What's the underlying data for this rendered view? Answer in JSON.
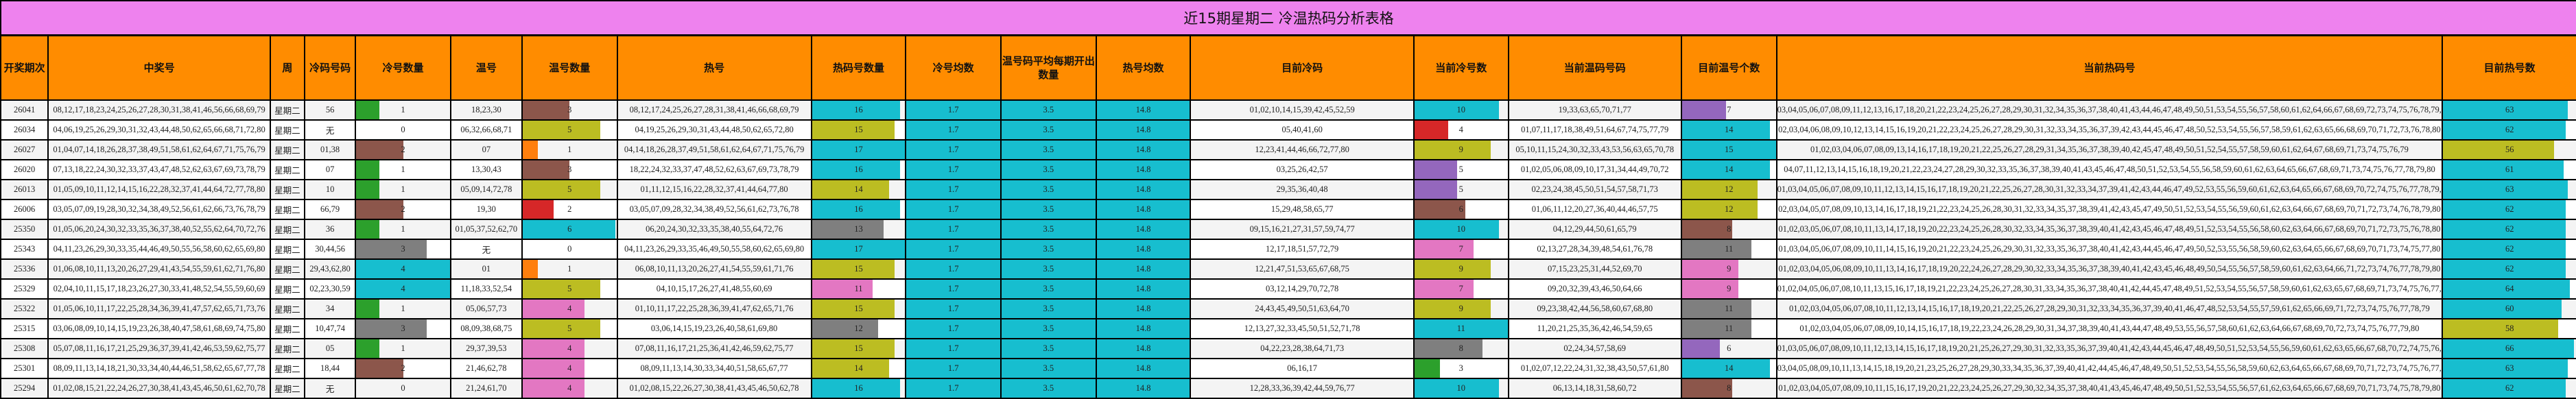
{
  "title": "近15期星期二 冷温热码分析表格",
  "colors": {
    "title_bg": "#ee82ee",
    "header_bg": "#ff8c00",
    "cyan": "#17becf",
    "olive": "#bcbd22",
    "brown": "#8c564b",
    "green": "#2ca02c",
    "orange": "#ff7f0e",
    "red": "#d62728",
    "gray": "#7f7f7f",
    "pink": "#e377c2",
    "purple": "#9467bd"
  },
  "headers": [
    "开奖期次",
    "中奖号",
    "周",
    "冷码号码",
    "冷号数量",
    "温号",
    "温号数量",
    "热号",
    "热码号数量",
    "冷号均数",
    "温号码平均每期开出数量",
    "热号均数",
    "目前冷码",
    "当前冷号数",
    "当前温码号码",
    "目前温号个数",
    "当前热码号",
    "目前热号数"
  ],
  "rows": [
    {
      "period": "26041",
      "numbers": "08,12,17,18,23,24,25,26,27,28,30,31,38,41,46,56,66,68,69,79",
      "week": "星期二",
      "cold": "56",
      "cold_count": "1",
      "warm": "18,23,30",
      "warm_count": "3",
      "hot": "08,12,17,24,25,26,27,28,31,38,41,46,66,68,69,79",
      "hot_count": "16",
      "cold_avg": "1.7",
      "warm_avg": "3.5",
      "hot_avg": "14.8",
      "cur_cold": "01,02,10,14,15,39,42,45,52,59",
      "cur_cold_count": "10",
      "cur_warm": "19,33,63,65,70,71,77",
      "cur_warm_count": "7",
      "cur_hot": "03,04,05,06,07,08,09,11,12,13,16,17,18,20,21,22,23,24,25,26,27,28,29,30,31,32,34,35,36,37,38,40,41,43,44,46,47,48,49,50,51,53,54,55,56,57,58,60,61,62,64,66,67,68,69,72,73,74,75,76,78,79,80",
      "cur_hot_count": "63"
    },
    {
      "period": "26034",
      "numbers": "04,06,19,25,26,29,30,31,32,43,44,48,50,62,65,66,68,71,72,80",
      "week": "星期二",
      "cold": "无",
      "cold_count": "0",
      "warm": "06,32,66,68,71",
      "warm_count": "5",
      "hot": "04,19,25,26,29,30,31,43,44,48,50,62,65,72,80",
      "hot_count": "15",
      "cold_avg": "1.7",
      "warm_avg": "3.5",
      "hot_avg": "14.8",
      "cur_cold": "05,40,41,60",
      "cur_cold_count": "4",
      "cur_warm": "01,07,11,17,18,38,49,51,64,67,74,75,77,79",
      "cur_warm_count": "14",
      "cur_hot": "02,03,04,06,08,09,10,12,13,14,15,16,19,20,21,22,23,24,25,26,27,28,29,30,31,32,33,34,35,36,37,39,42,43,44,45,46,47,48,50,52,53,54,55,56,57,58,59,61,62,63,65,66,68,69,70,71,72,73,76,78,80",
      "cur_hot_count": "62"
    },
    {
      "period": "26027",
      "numbers": "01,04,07,14,18,26,28,37,38,49,51,58,61,62,64,67,71,75,76,79",
      "week": "星期二",
      "cold": "01,38",
      "cold_count": "2",
      "warm": "07",
      "warm_count": "1",
      "hot": "04,14,18,26,28,37,49,51,58,61,62,64,67,71,75,76,79",
      "hot_count": "17",
      "cold_avg": "1.7",
      "warm_avg": "3.5",
      "hot_avg": "14.8",
      "cur_cold": "12,23,41,44,46,66,72,77,80",
      "cur_cold_count": "9",
      "cur_warm": "05,10,11,15,24,30,32,33,43,53,56,63,65,70,78",
      "cur_warm_count": "15",
      "cur_hot": "01,02,03,04,06,07,08,09,13,14,16,17,18,19,20,21,22,25,26,27,28,29,31,34,35,36,37,38,39,40,42,45,47,48,49,50,51,52,54,55,57,58,59,60,61,62,64,67,68,69,71,73,74,75,76,79",
      "cur_hot_count": "56"
    },
    {
      "period": "26020",
      "numbers": "07,13,18,22,24,30,32,33,37,43,47,48,52,62,63,67,69,73,78,79",
      "week": "星期二",
      "cold": "07",
      "cold_count": "1",
      "warm": "13,30,43",
      "warm_count": "3",
      "hot": "18,22,24,32,33,37,47,48,52,62,63,67,69,73,78,79",
      "hot_count": "16",
      "cold_avg": "1.7",
      "warm_avg": "3.5",
      "hot_avg": "14.8",
      "cur_cold": "03,25,26,42,57",
      "cur_cold_count": "5",
      "cur_warm": "01,02,05,06,08,09,10,17,31,34,44,49,70,72",
      "cur_warm_count": "14",
      "cur_hot": "04,07,11,12,13,14,15,16,18,19,20,21,22,23,24,27,28,29,30,32,33,35,36,37,38,39,40,41,43,45,46,47,48,50,51,52,53,54,55,56,58,59,60,61,62,63,64,65,66,67,68,69,71,73,74,75,76,77,78,79,80",
      "cur_hot_count": "61"
    },
    {
      "period": "26013",
      "numbers": "01,05,09,10,11,12,14,15,16,22,28,32,37,41,44,64,72,77,78,80",
      "week": "星期二",
      "cold": "10",
      "cold_count": "1",
      "warm": "05,09,14,72,78",
      "warm_count": "5",
      "hot": "01,11,12,15,16,22,28,32,37,41,44,64,77,80",
      "hot_count": "14",
      "cold_avg": "1.7",
      "warm_avg": "3.5",
      "hot_avg": "14.8",
      "cur_cold": "29,35,36,40,48",
      "cur_cold_count": "5",
      "cur_warm": "02,23,24,38,45,50,51,54,57,58,71,73",
      "cur_warm_count": "12",
      "cur_hot": "01,03,04,05,06,07,08,09,10,11,12,13,14,15,16,17,18,19,20,21,22,25,26,27,28,30,31,32,33,34,37,39,41,42,43,44,46,47,49,52,53,55,56,59,60,61,62,63,64,65,66,67,68,69,70,72,74,75,76,77,78,79,80",
      "cur_hot_count": "63"
    },
    {
      "period": "26006",
      "numbers": "03,05,07,09,19,28,30,32,34,38,49,52,56,61,62,66,73,76,78,79",
      "week": "星期二",
      "cold": "66,79",
      "cold_count": "2",
      "warm": "19,30",
      "warm_count": "2",
      "hot": "03,05,07,09,28,32,34,38,49,52,56,61,62,73,76,78",
      "hot_count": "16",
      "cold_avg": "1.7",
      "warm_avg": "3.5",
      "hot_avg": "14.8",
      "cur_cold": "15,29,48,58,65,77",
      "cur_cold_count": "6",
      "cur_warm": "01,06,11,12,20,27,36,40,44,46,57,75",
      "cur_warm_count": "12",
      "cur_hot": "02,03,04,05,07,08,09,10,13,14,16,17,18,19,21,22,23,24,25,26,28,30,31,32,33,34,35,37,38,39,41,42,43,45,47,49,50,51,52,53,54,55,56,59,60,61,62,63,64,66,67,68,69,70,71,72,73,74,76,78,79,80",
      "cur_hot_count": "62"
    },
    {
      "period": "25350",
      "numbers": "01,05,06,20,24,30,32,33,35,36,37,38,40,52,55,62,64,70,72,76",
      "week": "星期二",
      "cold": "36",
      "cold_count": "1",
      "warm": "01,05,37,52,62,70",
      "warm_count": "6",
      "hot": "06,20,24,30,32,33,35,38,40,55,64,72,76",
      "hot_count": "13",
      "cold_avg": "1.7",
      "warm_avg": "3.5",
      "hot_avg": "14.8",
      "cur_cold": "09,15,16,21,27,31,57,59,74,77",
      "cur_cold_count": "10",
      "cur_warm": "04,12,29,44,50,61,65,79",
      "cur_warm_count": "8",
      "cur_hot": "01,02,03,05,06,07,08,10,11,13,14,17,18,19,20,22,23,24,25,26,28,30,32,33,34,35,36,37,38,39,40,41,42,43,45,46,47,48,49,51,52,53,54,55,56,58,60,62,63,64,66,67,68,69,70,71,72,73,75,76,78,80",
      "cur_hot_count": "62"
    },
    {
      "period": "25343",
      "numbers": "04,11,23,26,29,30,33,35,44,46,49,50,55,56,58,60,62,65,69,80",
      "week": "星期二",
      "cold": "30,44,56",
      "cold_count": "3",
      "warm": "无",
      "warm_count": "0",
      "hot": "04,11,23,26,29,33,35,46,49,50,55,58,60,62,65,69,80",
      "hot_count": "17",
      "cold_avg": "1.7",
      "warm_avg": "3.5",
      "hot_avg": "14.8",
      "cur_cold": "12,17,18,51,57,72,79",
      "cur_cold_count": "7",
      "cur_warm": "02,13,27,28,34,39,48,54,61,76,78",
      "cur_warm_count": "11",
      "cur_hot": "01,03,04,05,06,07,08,09,10,11,14,15,16,19,20,21,22,23,24,25,26,29,30,31,32,33,35,36,37,38,40,41,42,43,44,45,46,47,49,50,52,53,55,56,58,59,60,62,63,64,65,66,67,68,69,70,71,73,74,75,77,80",
      "cur_hot_count": "62"
    },
    {
      "period": "25336",
      "numbers": "01,06,08,10,11,13,20,26,27,29,41,43,54,55,59,61,62,71,76,80",
      "week": "星期二",
      "cold": "29,43,62,80",
      "cold_count": "4",
      "warm": "01",
      "warm_count": "1",
      "hot": "06,08,10,11,13,20,26,27,41,54,55,59,61,71,76",
      "hot_count": "15",
      "cold_avg": "1.7",
      "warm_avg": "3.5",
      "hot_avg": "14.8",
      "cur_cold": "12,21,47,51,53,65,67,68,75",
      "cur_cold_count": "9",
      "cur_warm": "07,15,23,25,31,44,52,69,70",
      "cur_warm_count": "9",
      "cur_hot": "01,02,03,04,05,06,08,09,10,11,13,14,16,17,18,19,20,22,24,26,27,28,29,30,32,33,34,35,36,37,38,39,40,41,42,43,45,46,48,49,50,54,55,56,57,58,59,60,61,62,63,64,66,71,72,73,74,76,77,78,79,80",
      "cur_hot_count": "62"
    },
    {
      "period": "25329",
      "numbers": "02,04,10,11,15,17,18,23,26,27,30,33,41,48,52,54,55,59,60,69",
      "week": "星期二",
      "cold": "02,23,30,59",
      "cold_count": "4",
      "warm": "11,18,33,52,54",
      "warm_count": "5",
      "hot": "04,10,15,17,26,27,41,48,55,60,69",
      "hot_count": "11",
      "cold_avg": "1.7",
      "warm_avg": "3.5",
      "hot_avg": "14.8",
      "cur_cold": "03,12,14,29,70,72,78",
      "cur_cold_count": "7",
      "cur_warm": "09,20,32,39,43,46,50,64,66",
      "cur_warm_count": "9",
      "cur_hot": "01,02,04,05,06,07,08,10,11,13,15,16,17,18,19,21,22,23,24,25,26,27,28,30,31,33,34,35,36,37,38,40,41,42,44,45,47,48,49,51,52,53,54,55,56,57,58,59,60,61,62,63,65,67,68,69,71,73,74,75,76,77,79,80",
      "cur_hot_count": "64"
    },
    {
      "period": "25322",
      "numbers": "01,05,06,10,11,17,22,25,28,34,36,39,41,47,57,62,65,71,73,76",
      "week": "星期二",
      "cold": "34",
      "cold_count": "1",
      "warm": "05,06,57,73",
      "warm_count": "4",
      "hot": "01,10,11,17,22,25,28,36,39,41,47,62,65,71,76",
      "hot_count": "15",
      "cold_avg": "1.7",
      "warm_avg": "3.5",
      "hot_avg": "14.8",
      "cur_cold": "24,43,45,49,50,51,63,64,70",
      "cur_cold_count": "9",
      "cur_warm": "09,23,38,42,44,56,58,60,67,68,80",
      "cur_warm_count": "11",
      "cur_hot": "01,02,03,04,05,06,07,08,10,11,12,13,14,15,16,17,18,19,20,21,22,25,26,27,28,29,30,31,32,33,34,35,36,37,39,40,41,46,47,48,52,53,54,55,57,59,61,62,65,66,69,71,72,73,74,75,76,77,78,79",
      "cur_hot_count": "60"
    },
    {
      "period": "25315",
      "numbers": "03,06,08,09,10,14,15,19,23,26,38,40,47,58,61,68,69,74,75,80",
      "week": "星期二",
      "cold": "10,47,74",
      "cold_count": "3",
      "warm": "08,09,38,68,75",
      "warm_count": "5",
      "hot": "03,06,14,15,19,23,26,40,58,61,69,80",
      "hot_count": "12",
      "cold_avg": "1.7",
      "warm_avg": "3.5",
      "hot_avg": "14.8",
      "cur_cold": "12,13,27,32,33,45,50,51,52,71,78",
      "cur_cold_count": "11",
      "cur_warm": "11,20,21,25,35,36,42,46,54,59,65",
      "cur_warm_count": "11",
      "cur_hot": "01,02,03,04,05,06,07,08,09,10,14,15,16,17,18,19,22,23,24,26,28,29,30,31,34,37,38,39,40,41,43,44,47,48,49,53,55,56,57,58,60,61,62,63,64,66,67,68,69,70,72,73,74,75,76,77,79,80",
      "cur_hot_count": "58"
    },
    {
      "period": "25308",
      "numbers": "05,07,08,11,16,17,21,25,29,36,37,39,41,42,46,53,59,62,75,77",
      "week": "星期二",
      "cold": "05",
      "cold_count": "1",
      "warm": "29,37,39,53",
      "warm_count": "4",
      "hot": "07,08,11,16,17,21,25,36,41,42,46,59,62,75,77",
      "hot_count": "15",
      "cold_avg": "1.7",
      "warm_avg": "3.5",
      "hot_avg": "14.8",
      "cur_cold": "04,22,23,28,38,64,71,73",
      "cur_cold_count": "8",
      "cur_warm": "02,24,34,57,58,69",
      "cur_warm_count": "6",
      "cur_hot": "01,03,05,06,07,08,09,10,11,12,13,14,15,16,17,18,19,20,21,25,26,27,29,30,31,32,33,35,36,37,39,40,41,42,43,44,45,46,47,48,49,50,51,52,53,54,55,56,59,60,61,62,63,65,66,67,68,70,72,74,75,76,77,78,79,80",
      "cur_hot_count": "66"
    },
    {
      "period": "25301",
      "numbers": "08,09,11,13,14,18,21,30,33,34,40,44,46,51,58,62,65,67,77,78",
      "week": "星期二",
      "cold": "18,44",
      "cold_count": "2",
      "warm": "21,46,62,78",
      "warm_count": "4",
      "hot": "08,09,11,13,14,30,33,34,40,51,58,65,67,77",
      "hot_count": "14",
      "cold_avg": "1.7",
      "warm_avg": "3.5",
      "hot_avg": "14.8",
      "cur_cold": "06,16,17",
      "cur_cold_count": "3",
      "cur_warm": "01,02,07,12,22,24,31,32,38,43,50,57,61,80",
      "cur_warm_count": "14",
      "cur_hot": "03,04,05,08,09,10,11,13,14,15,18,19,20,21,23,25,26,27,28,29,30,33,34,35,36,37,39,40,41,42,44,45,46,47,48,49,50,51,52,53,54,55,56,58,59,60,62,63,64,65,66,67,68,69,70,71,72,73,74,75,76,77,78,79",
      "cur_hot_count": "63"
    },
    {
      "period": "25294",
      "numbers": "01,02,08,15,21,22,24,26,27,30,38,41,43,45,46,50,61,62,70,78",
      "week": "星期二",
      "cold": "无",
      "cold_count": "0",
      "warm": "21,24,61,70",
      "warm_count": "4",
      "hot": "01,02,08,15,22,26,27,30,38,41,43,45,46,50,62,78",
      "hot_count": "16",
      "cold_avg": "1.7",
      "warm_avg": "3.5",
      "hot_avg": "14.8",
      "cur_cold": "12,28,33,36,39,42,44,59,76,77",
      "cur_cold_count": "10",
      "cur_warm": "06,13,14,18,31,58,60,72",
      "cur_warm_count": "8",
      "cur_hot": "01,02,03,04,05,07,08,09,10,11,15,16,17,19,20,21,22,23,24,25,26,27,29,30,32,34,35,37,38,40,41,43,45,46,47,48,49,50,51,52,53,54,55,56,57,61,62,63,64,65,66,67,68,69,70,71,73,74,75,78,79,80",
      "cur_hot_count": "62"
    }
  ]
}
